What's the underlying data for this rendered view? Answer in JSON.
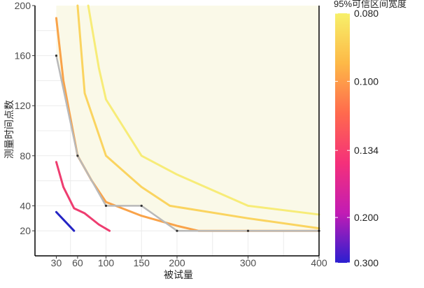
{
  "chart_data": {
    "type": "line",
    "title": "",
    "xlabel": "被试量",
    "ylabel": "测量时间点数",
    "xlim": [
      0,
      400
    ],
    "ylim": [
      0,
      200
    ],
    "x_ticks": [
      30,
      60,
      100,
      150,
      200,
      300,
      400
    ],
    "y_ticks": [
      20,
      40,
      80,
      120,
      160,
      200
    ],
    "grid": true,
    "legend": {
      "title": "95%可信区间宽度",
      "placement": "right",
      "type": "colorbar",
      "range": [
        0.08,
        0.3
      ],
      "ticks": [
        "0.080",
        "0.100",
        "0.134",
        "0.200",
        "0.300"
      ],
      "tick_values": [
        0.08,
        0.1,
        0.134,
        0.2,
        0.3
      ],
      "colors": [
        "#f7f06a",
        "#fdb947",
        "#ff6a4d",
        "#f5307a",
        "#c21cb4",
        "#2b1fd0"
      ]
    },
    "shaded_region": {
      "fill": "#faf9e8",
      "boundary": [
        [
          30,
          200
        ],
        [
          30,
          160
        ],
        [
          60,
          80
        ],
        [
          100,
          40
        ],
        [
          150,
          40
        ],
        [
          200,
          20
        ],
        [
          400,
          20
        ],
        [
          400,
          200
        ]
      ]
    },
    "series": [
      {
        "color": "#2424c4",
        "points": [
          [
            30,
            35
          ],
          [
            55,
            20
          ]
        ]
      },
      {
        "color": "#ee3d70",
        "points": [
          [
            30,
            75
          ],
          [
            40,
            55
          ],
          [
            55,
            38
          ],
          [
            70,
            34
          ],
          [
            90,
            25
          ],
          [
            105,
            20
          ]
        ]
      },
      {
        "color": "#f9a349",
        "points": [
          [
            30,
            190
          ],
          [
            40,
            140
          ],
          [
            50,
            110
          ],
          [
            60,
            80
          ],
          [
            80,
            60
          ],
          [
            100,
            43
          ],
          [
            150,
            32
          ],
          [
            200,
            24
          ],
          [
            230,
            20
          ],
          [
            400,
            20
          ]
        ]
      },
      {
        "color": "#fad460",
        "points": [
          [
            60,
            200
          ],
          [
            70,
            130
          ],
          [
            100,
            80
          ],
          [
            150,
            55
          ],
          [
            190,
            40
          ],
          [
            300,
            30
          ],
          [
            400,
            22
          ]
        ]
      },
      {
        "color": "#f7ec78",
        "points": [
          [
            75,
            200
          ],
          [
            90,
            150
          ],
          [
            100,
            125
          ],
          [
            150,
            80
          ],
          [
            200,
            65
          ],
          [
            300,
            40
          ],
          [
            400,
            33
          ]
        ]
      }
    ],
    "boundary_line": {
      "color": "#b9b9b9",
      "points": [
        [
          30,
          160
        ],
        [
          60,
          80
        ],
        [
          100,
          40
        ],
        [
          150,
          40
        ],
        [
          200,
          20
        ],
        [
          300,
          20
        ],
        [
          400,
          20
        ]
      ]
    }
  }
}
